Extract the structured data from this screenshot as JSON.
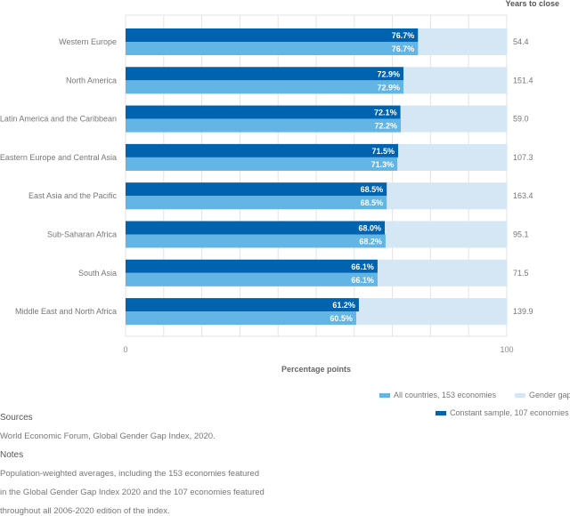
{
  "chart_data": {
    "type": "bar",
    "orientation": "horizontal",
    "categories": [
      "Western Europe",
      "North America",
      "Latin America and the Caribbean",
      "Eastern Europe and Central Asia",
      "East Asia and the Pacific",
      "Sub-Saharan Africa",
      "South Asia",
      "Middle East and North Africa"
    ],
    "series": [
      {
        "name": "Constant sample, 107 economies",
        "color": "#0063b0",
        "values": [
          76.7,
          72.9,
          72.1,
          71.5,
          68.5,
          68.0,
          66.1,
          61.2
        ],
        "labels": [
          "76.7%",
          "72.9%",
          "72.1%",
          "71.5%",
          "68.5%",
          "68.0%",
          "66.1%",
          "61.2%"
        ]
      },
      {
        "name": "All countries, 153 economies",
        "color": "#62b5e5",
        "values": [
          76.7,
          72.9,
          72.2,
          71.3,
          68.5,
          68.2,
          66.1,
          60.5
        ],
        "labels": [
          "76.7%",
          "72.9%",
          "72.2%",
          "71.3%",
          "68.5%",
          "68.2%",
          "66.1%",
          "60.5%"
        ]
      },
      {
        "name": "Gender gap",
        "color": "#d5e6f4"
      }
    ],
    "years_to_close": {
      "title": "Years to close",
      "values": [
        "54.4",
        "151.4",
        "59.0",
        "107.3",
        "163.4",
        "95.1",
        "71.5",
        "139.9"
      ]
    },
    "xlabel": "Percentage points",
    "xlim": [
      0,
      100
    ],
    "xticks": [
      "0",
      "100"
    ],
    "grid": true,
    "legend": "bottom-right"
  },
  "footer": {
    "sources_heading": "Sources",
    "sources_text": "World Economic Forum, Global Gender Gap Index, 2020.",
    "notes_heading": "Notes",
    "notes_lines": [
      "Population-weighted averages, including the 153 economies featured",
      "in the Global Gender Gap Index 2020 and the 107 economies featured",
      "throughout all 2006-2020 edition of the index."
    ]
  }
}
